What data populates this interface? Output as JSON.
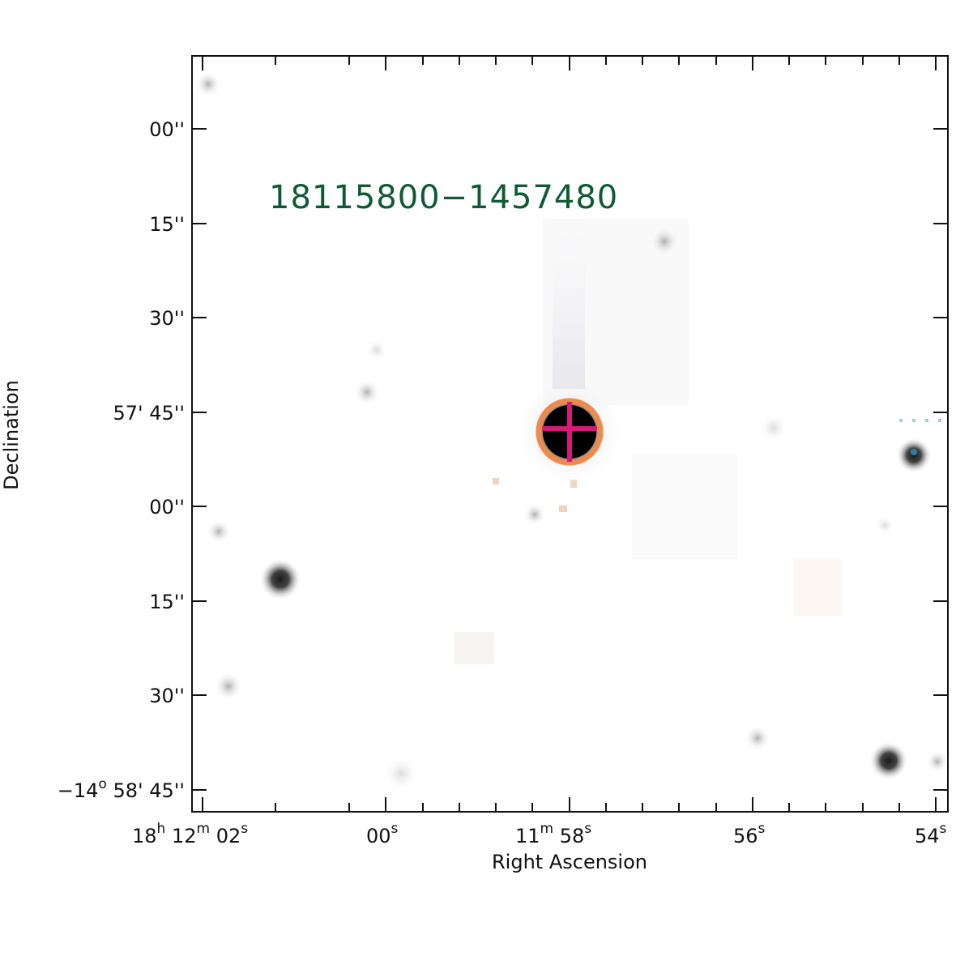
{
  "image": {
    "source_label": "18115800−1457480",
    "colors": {
      "source_label": "#0f5a35",
      "aperture_circle": "#ee8a4d",
      "crosshair": "#d4187c",
      "axis": "#111111",
      "background": "#ffffff"
    }
  },
  "axes": {
    "xlabel": "Right Ascension",
    "ylabel": "Declination",
    "ra_ticks": [
      {
        "main": "18",
        "main_sup": "h",
        "mid": " 12",
        "mid_sup": "m",
        "sec": " 02",
        "sec_sup": "s"
      },
      {
        "sec": "00",
        "sec_sup": "s"
      },
      {
        "mid": "11",
        "mid_sup": "m",
        "sec": " 58",
        "sec_sup": "s"
      },
      {
        "sec": "56",
        "sec_sup": "s"
      },
      {
        "sec": "54",
        "sec_sup": "s"
      }
    ],
    "dec_ticks": [
      {
        "text": "00''"
      },
      {
        "text": "15''"
      },
      {
        "text": "30''"
      },
      {
        "text": "57' 45''"
      },
      {
        "text": "00''"
      },
      {
        "text": "15''"
      },
      {
        "text": "30''"
      },
      {
        "deg": "−14",
        "deg_sup": "o",
        "text": " 58' 45''"
      }
    ]
  },
  "markers": [
    "aperture-circle",
    "crosshair"
  ]
}
